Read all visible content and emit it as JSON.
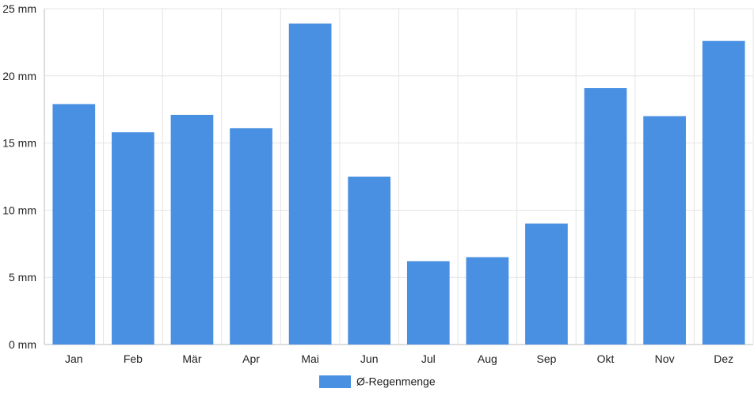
{
  "chart_data": {
    "type": "bar",
    "title": "",
    "xlabel": "",
    "ylabel": "",
    "categories": [
      "Jan",
      "Feb",
      "Mär",
      "Apr",
      "Mai",
      "Jun",
      "Jul",
      "Aug",
      "Sep",
      "Okt",
      "Nov",
      "Dez"
    ],
    "series": [
      {
        "name": "Ø-Regenmenge",
        "values": [
          17.9,
          15.8,
          17.1,
          16.1,
          23.9,
          12.5,
          6.2,
          6.5,
          9.0,
          19.1,
          17.0,
          22.6
        ],
        "color": "#4a90e2"
      }
    ],
    "ylim": [
      0,
      25
    ],
    "yticks": [
      0,
      5,
      10,
      15,
      20,
      25
    ],
    "ytick_suffix": " mm",
    "grid": true,
    "legend_position": "bottom-center"
  }
}
